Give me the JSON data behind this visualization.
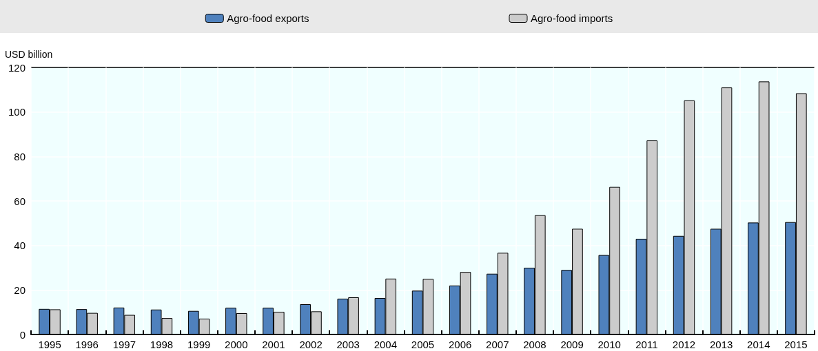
{
  "chart_data": {
    "type": "bar",
    "ylabel": "USD billion",
    "categories": [
      "1995",
      "1996",
      "1997",
      "1998",
      "1999",
      "2000",
      "2001",
      "2002",
      "2003",
      "2004",
      "2005",
      "2006",
      "2007",
      "2008",
      "2009",
      "2010",
      "2011",
      "2012",
      "2013",
      "2014",
      "2015"
    ],
    "series": [
      {
        "name": "Agro-food exports",
        "color": "#4f81bd",
        "values": [
          11.5,
          11.4,
          12.1,
          11.2,
          10.6,
          12,
          12,
          13.6,
          16.1,
          16.4,
          19.7,
          22,
          27.3,
          30,
          29,
          35.7,
          43,
          44.3,
          47.5,
          50.3,
          50.5
        ]
      },
      {
        "name": "Agro-food imports",
        "color": "#cccccc",
        "values": [
          11.3,
          9.7,
          8.8,
          7.4,
          7.1,
          9.6,
          10.2,
          10.4,
          16.7,
          25.1,
          25,
          28.1,
          36.7,
          53.6,
          47.5,
          66.3,
          87.2,
          105.2,
          111,
          113.7,
          108.4
        ]
      }
    ],
    "ylim": [
      0,
      120
    ],
    "yticks": [
      0,
      20,
      40,
      60,
      80,
      100,
      120
    ],
    "grid": true,
    "legend": "top"
  }
}
